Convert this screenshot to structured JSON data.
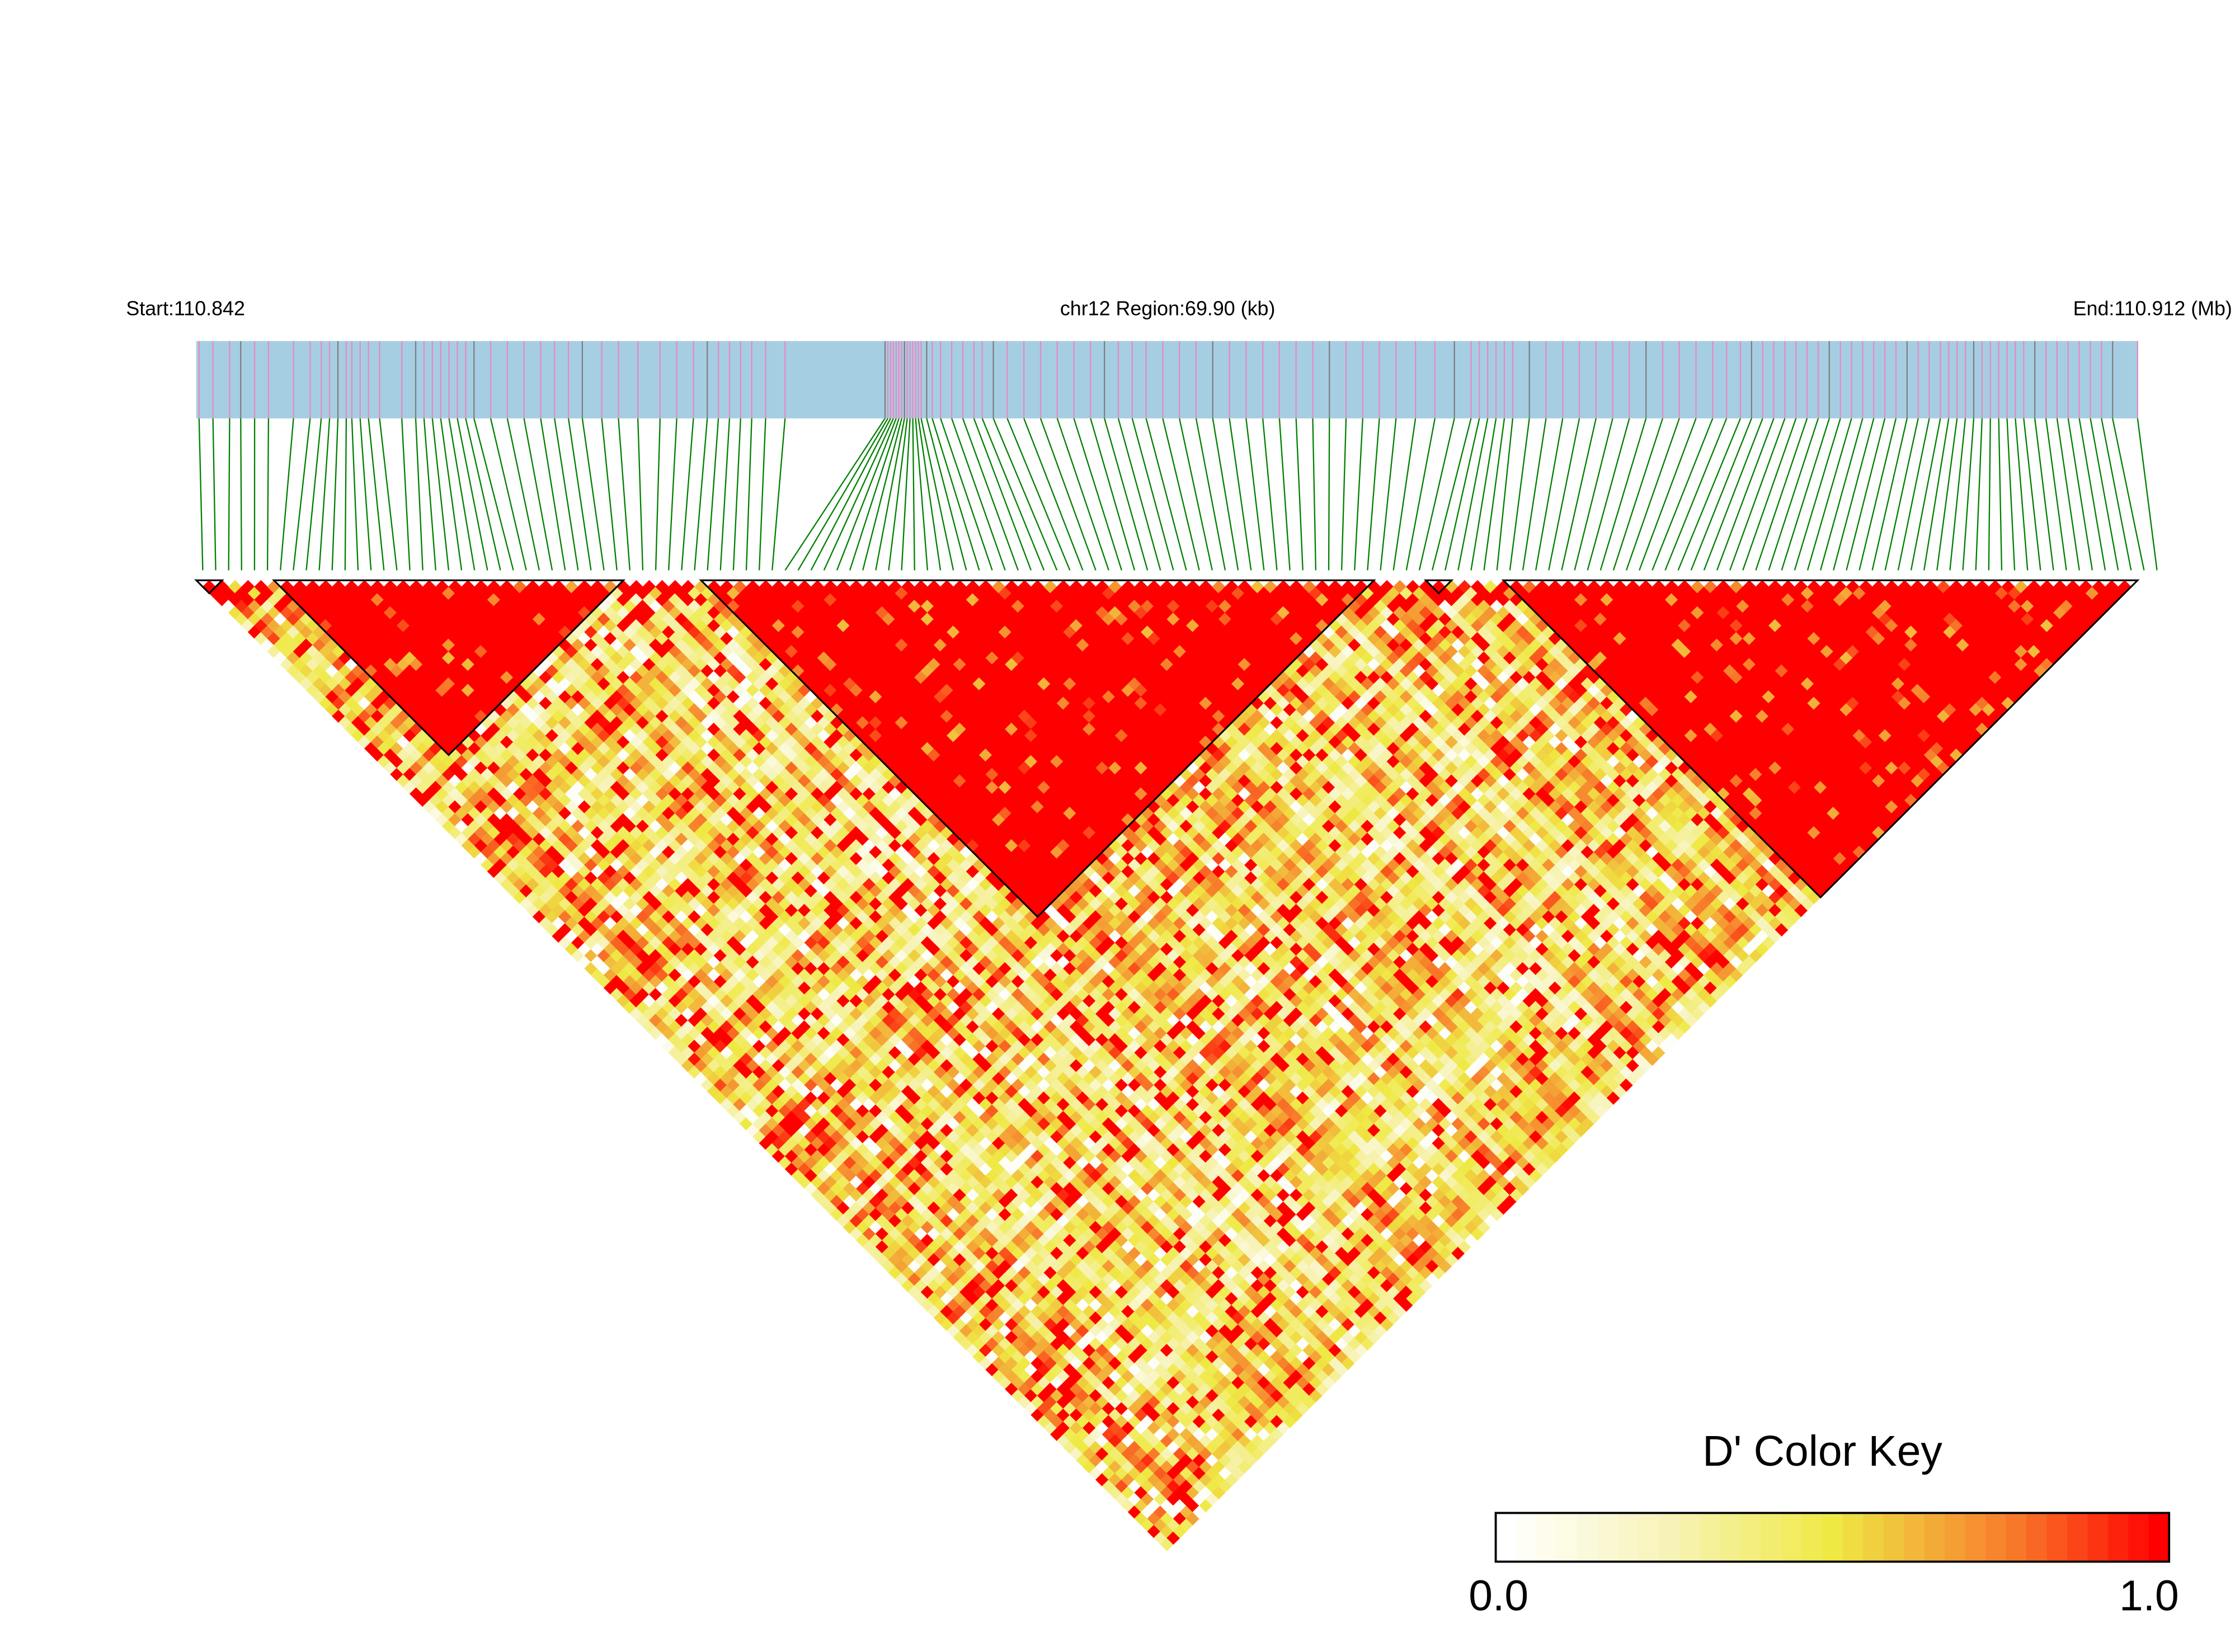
{
  "header": {
    "start_label": "Start:110.842",
    "region_label": "chr12 Region:69.90 (kb)",
    "end_label": "End:110.912 (Mb)"
  },
  "chart_data": {
    "type": "heatmap",
    "subtype": "LD triangle (pairwise D')",
    "chromosome": "chr12",
    "region_start_mb": 110.842,
    "region_end_mb": 110.912,
    "region_length_kb": 69.9,
    "n_snps": 150,
    "snp_positions_kb": [
      0.1,
      0.6,
      1.2,
      1.6,
      2.1,
      2.6,
      3.5,
      4.1,
      4.5,
      4.8,
      5.1,
      5.4,
      5.6,
      5.9,
      6.2,
      6.6,
      7.4,
      7.9,
      8.2,
      8.5,
      8.8,
      9.1,
      9.4,
      9.7,
      10.0,
      10.6,
      11.2,
      11.8,
      12.4,
      12.9,
      13.4,
      13.9,
      14.6,
      15.2,
      15.9,
      16.7,
      17.3,
      17.9,
      18.4,
      18.8,
      19.2,
      19.6,
      20.0,
      20.5,
      21.2,
      24.8,
      24.9,
      25.0,
      25.1,
      25.2,
      25.3,
      25.4,
      25.5,
      25.6,
      25.7,
      25.8,
      25.9,
      26.0,
      26.1,
      26.3,
      26.5,
      26.8,
      27.2,
      27.6,
      28.0,
      28.3,
      28.7,
      29.2,
      29.8,
      30.4,
      31.0,
      31.6,
      32.2,
      32.7,
      33.2,
      33.7,
      34.2,
      34.8,
      35.4,
      36.0,
      36.6,
      37.2,
      37.8,
      38.4,
      39.0,
      39.6,
      40.2,
      40.8,
      41.4,
      42.0,
      42.6,
      43.2,
      43.9,
      44.6,
      45.3,
      45.9,
      46.2,
      46.5,
      46.8,
      47.1,
      47.4,
      48.0,
      48.6,
      49.2,
      49.8,
      50.4,
      51.0,
      51.6,
      52.2,
      52.8,
      53.4,
      54.0,
      54.6,
      55.1,
      55.6,
      56.0,
      56.4,
      56.8,
      57.2,
      57.6,
      58.0,
      58.4,
      58.8,
      59.2,
      59.6,
      60.0,
      60.4,
      60.8,
      61.2,
      61.6,
      62.0,
      62.4,
      62.8,
      63.1,
      63.4,
      63.7,
      64.0,
      64.3,
      64.6,
      64.9,
      65.2,
      65.5,
      65.8,
      66.2,
      66.6,
      67.0,
      67.4,
      67.8,
      68.2,
      68.6,
      69.0,
      69.9
    ],
    "ld_blocks": [
      {
        "first_snp": 0,
        "last_snp": 1
      },
      {
        "first_snp": 6,
        "last_snp": 32
      },
      {
        "first_snp": 39,
        "last_snp": 90
      },
      {
        "first_snp": 95,
        "last_snp": 96
      },
      {
        "first_snp": 101,
        "last_snp": 149
      }
    ],
    "block_typical_dprime": 1.0,
    "color_key": {
      "title": "D' Color Key",
      "min_label": "0.0",
      "max_label": "1.0",
      "range": [
        0.0,
        1.0
      ],
      "steps": 33,
      "stops": [
        {
          "v": 0.0,
          "color": "#ffffff"
        },
        {
          "v": 0.25,
          "color": "#f7f3b8"
        },
        {
          "v": 0.5,
          "color": "#efe944"
        },
        {
          "v": 0.62,
          "color": "#f2b93c"
        },
        {
          "v": 0.78,
          "color": "#f8792a"
        },
        {
          "v": 1.0,
          "color": "#ff0000"
        }
      ]
    },
    "colors": {
      "gene_bar": "#a6cee3",
      "snp_mark": "#e78ac3",
      "snp_mark_alt": "#7f7f7f",
      "connector": "#008000",
      "block_outline": "#000000"
    }
  }
}
